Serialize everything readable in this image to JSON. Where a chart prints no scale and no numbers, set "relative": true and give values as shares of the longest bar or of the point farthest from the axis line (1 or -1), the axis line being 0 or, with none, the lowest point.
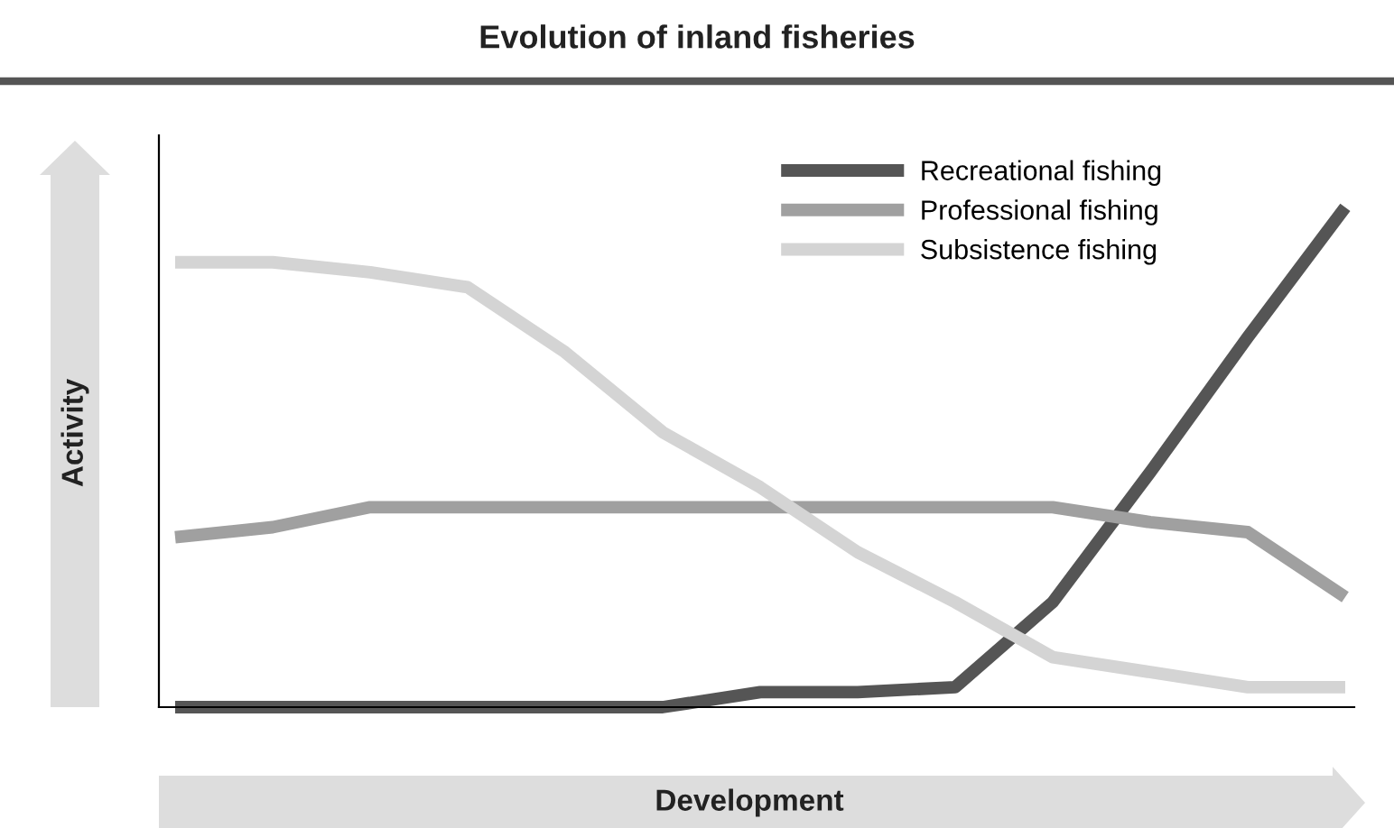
{
  "chart_data": {
    "type": "line",
    "title": "Evolution of inland fisheries",
    "xlabel": "Development",
    "ylabel": "Activity",
    "relative": true,
    "categories": [
      null,
      null,
      null,
      null,
      null,
      null,
      null,
      null,
      null,
      null,
      null,
      null,
      null
    ],
    "series": [
      {
        "name": "Recreational fishing",
        "color": "#555555",
        "values": [
          0,
          0,
          0,
          0,
          0,
          0,
          0.03,
          0.03,
          0.04,
          0.21,
          0.47,
          0.74,
          1
        ]
      },
      {
        "name": "Professional fishing",
        "color": "#a0a0a0",
        "values": [
          0.34,
          0.36,
          0.4,
          0.4,
          0.4,
          0.4,
          0.4,
          0.4,
          0.4,
          0.4,
          0.37,
          0.35,
          0.22
        ]
      },
      {
        "name": "Subsistence fishing",
        "color": "#d4d4d4",
        "values": [
          0.89,
          0.89,
          0.87,
          0.84,
          0.71,
          0.55,
          0.44,
          0.31,
          0.21,
          0.1,
          0.07,
          0.04,
          0.04
        ]
      }
    ],
    "legend": "top right",
    "grid": false,
    "marker": "none",
    "line_style": "solid"
  }
}
